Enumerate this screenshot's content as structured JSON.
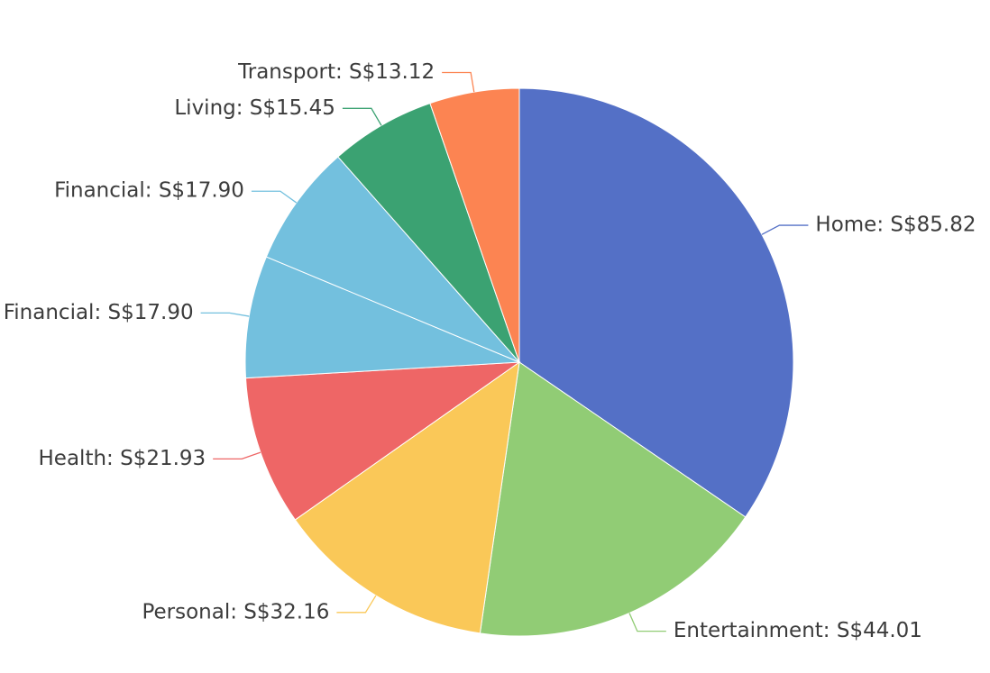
{
  "chart_data": {
    "type": "pie",
    "currency": "S$",
    "slices": [
      {
        "label": "Home",
        "value": 85.82,
        "color": "#5470c6"
      },
      {
        "label": "Entertainment",
        "value": 44.01,
        "color": "#91cc75"
      },
      {
        "label": "Personal",
        "value": 32.16,
        "color": "#fac858"
      },
      {
        "label": "Health",
        "value": 21.93,
        "color": "#ee6666"
      },
      {
        "label": "Financial",
        "value": 17.9,
        "color": "#73c0de"
      },
      {
        "label": "Financial",
        "value": 17.9,
        "color": "#73c0de"
      },
      {
        "label": "Living",
        "value": 15.45,
        "color": "#3ba272"
      },
      {
        "label": "Transport",
        "value": 13.12,
        "color": "#fc8452"
      }
    ]
  }
}
